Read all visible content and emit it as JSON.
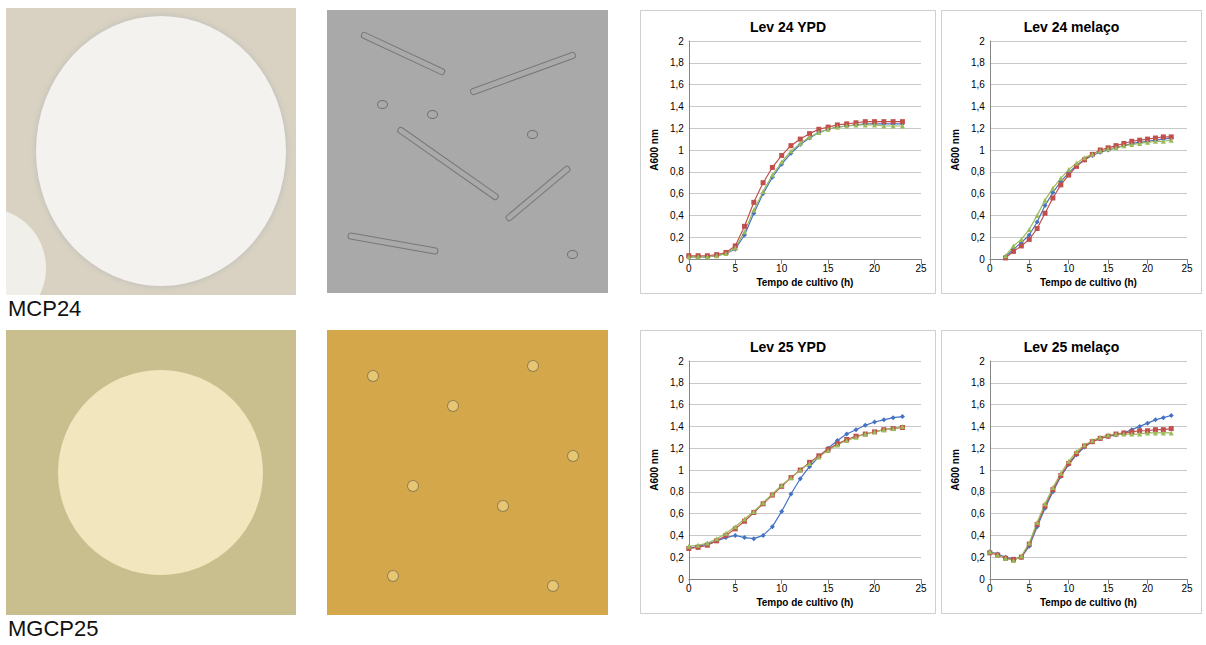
{
  "strain_labels": [
    "MCP24",
    "MGCP25"
  ],
  "chart_data": [
    {
      "type": "line",
      "title": "Lev 24 YPD",
      "x_label": "Tempo de cultivo (h)",
      "y_label": "A600 nm",
      "x": [
        0,
        1,
        2,
        3,
        4,
        5,
        6,
        7,
        8,
        9,
        10,
        11,
        12,
        13,
        14,
        15,
        16,
        17,
        18,
        19,
        20,
        21,
        22,
        23
      ],
      "series": [
        {
          "color": "#4472c4",
          "marker": "diamond",
          "values": [
            0.02,
            0.02,
            0.02,
            0.03,
            0.05,
            0.09,
            0.22,
            0.42,
            0.6,
            0.75,
            0.87,
            0.97,
            1.05,
            1.11,
            1.16,
            1.19,
            1.21,
            1.22,
            1.23,
            1.24,
            1.24,
            1.24,
            1.24,
            1.24
          ]
        },
        {
          "color": "#c0504d",
          "marker": "square",
          "values": [
            0.03,
            0.03,
            0.03,
            0.04,
            0.06,
            0.12,
            0.3,
            0.52,
            0.7,
            0.84,
            0.95,
            1.04,
            1.1,
            1.15,
            1.19,
            1.21,
            1.23,
            1.24,
            1.25,
            1.26,
            1.26,
            1.26,
            1.26,
            1.26
          ]
        },
        {
          "color": "#9bbb59",
          "marker": "triangle",
          "values": [
            0.02,
            0.02,
            0.02,
            0.03,
            0.05,
            0.1,
            0.25,
            0.45,
            0.62,
            0.77,
            0.89,
            0.99,
            1.06,
            1.12,
            1.16,
            1.19,
            1.21,
            1.22,
            1.23,
            1.23,
            1.23,
            1.22,
            1.22,
            1.22
          ]
        }
      ],
      "xlim": [
        0,
        25
      ],
      "xticks": [
        0,
        5,
        10,
        15,
        20,
        25
      ],
      "ylim": [
        0,
        2
      ],
      "yticks": [
        0,
        {
          "value": 0.2,
          "label": "0,2"
        },
        {
          "value": 0.4,
          "label": "0,4"
        },
        {
          "value": 0.6,
          "label": "0,6"
        },
        {
          "value": 0.8,
          "label": "0,8"
        },
        1,
        {
          "value": 1.2,
          "label": "1,2"
        },
        {
          "value": 1.4,
          "label": "1,4"
        },
        {
          "value": 1.6,
          "label": "1,6"
        },
        {
          "value": 1.8,
          "label": "1,8"
        },
        2
      ],
      "grid": true
    },
    {
      "type": "line",
      "title": "Lev 24 melaço",
      "x_label": "Tempo de cultivo (h)",
      "y_label": "A600 nm",
      "x": [
        2,
        3,
        4,
        5,
        6,
        7,
        8,
        9,
        10,
        11,
        12,
        13,
        14,
        15,
        16,
        17,
        18,
        19,
        20,
        21,
        22,
        23
      ],
      "series": [
        {
          "color": "#4472c4",
          "marker": "diamond",
          "values": [
            0.02,
            0.09,
            0.15,
            0.22,
            0.34,
            0.49,
            0.61,
            0.71,
            0.79,
            0.86,
            0.91,
            0.95,
            0.98,
            1.0,
            1.02,
            1.04,
            1.06,
            1.07,
            1.08,
            1.09,
            1.1,
            1.11
          ]
        },
        {
          "color": "#c0504d",
          "marker": "square",
          "values": [
            0.01,
            0.07,
            0.12,
            0.18,
            0.28,
            0.42,
            0.56,
            0.68,
            0.77,
            0.85,
            0.91,
            0.96,
            1.0,
            1.02,
            1.04,
            1.06,
            1.08,
            1.09,
            1.1,
            1.11,
            1.12,
            1.12
          ]
        },
        {
          "color": "#9bbb59",
          "marker": "triangle",
          "values": [
            0.03,
            0.12,
            0.18,
            0.27,
            0.4,
            0.54,
            0.65,
            0.74,
            0.82,
            0.88,
            0.93,
            0.96,
            0.99,
            1.01,
            1.02,
            1.04,
            1.05,
            1.06,
            1.07,
            1.08,
            1.08,
            1.09
          ]
        }
      ],
      "xlim": [
        0,
        25
      ],
      "xticks": [
        0,
        5,
        10,
        15,
        20,
        25
      ],
      "ylim": [
        0,
        2
      ],
      "yticks": [
        0,
        {
          "value": 0.2,
          "label": "0,2"
        },
        {
          "value": 0.4,
          "label": "0,4"
        },
        {
          "value": 0.6,
          "label": "0,6"
        },
        {
          "value": 0.8,
          "label": "0,8"
        },
        1,
        {
          "value": 1.2,
          "label": "1,2"
        },
        {
          "value": 1.4,
          "label": "1,4"
        },
        {
          "value": 1.6,
          "label": "1,6"
        },
        {
          "value": 1.8,
          "label": "1,8"
        },
        2
      ],
      "grid": true
    },
    {
      "type": "line",
      "title": "Lev 25 YPD",
      "x_label": "Tempo de cultivo (h)",
      "y_label": "A600 nm",
      "x": [
        0,
        1,
        2,
        3,
        4,
        5,
        6,
        7,
        8,
        9,
        10,
        11,
        12,
        13,
        14,
        15,
        16,
        17,
        18,
        19,
        20,
        21,
        22,
        23
      ],
      "series": [
        {
          "color": "#4472c4",
          "marker": "diamond",
          "values": [
            0.28,
            0.3,
            0.32,
            0.35,
            0.38,
            0.4,
            0.38,
            0.37,
            0.4,
            0.48,
            0.62,
            0.78,
            0.92,
            1.03,
            1.12,
            1.2,
            1.27,
            1.33,
            1.37,
            1.41,
            1.44,
            1.46,
            1.48,
            1.49
          ]
        },
        {
          "color": "#c0504d",
          "marker": "square",
          "values": [
            0.28,
            0.29,
            0.31,
            0.35,
            0.4,
            0.46,
            0.53,
            0.61,
            0.69,
            0.77,
            0.85,
            0.93,
            1.0,
            1.07,
            1.13,
            1.19,
            1.24,
            1.28,
            1.31,
            1.33,
            1.35,
            1.37,
            1.38,
            1.39
          ]
        },
        {
          "color": "#9bbb59",
          "marker": "triangle",
          "values": [
            0.3,
            0.31,
            0.33,
            0.37,
            0.42,
            0.48,
            0.55,
            0.62,
            0.7,
            0.78,
            0.86,
            0.93,
            1.0,
            1.06,
            1.12,
            1.18,
            1.23,
            1.27,
            1.3,
            1.33,
            1.35,
            1.37,
            1.38,
            1.4
          ]
        }
      ],
      "xlim": [
        0,
        25
      ],
      "xticks": [
        0,
        5,
        10,
        15,
        20,
        25
      ],
      "ylim": [
        0,
        2
      ],
      "yticks": [
        0,
        {
          "value": 0.2,
          "label": "0,2"
        },
        {
          "value": 0.4,
          "label": "0,4"
        },
        {
          "value": 0.6,
          "label": "0,6"
        },
        {
          "value": 0.8,
          "label": "0,8"
        },
        1,
        {
          "value": 1.2,
          "label": "1,2"
        },
        {
          "value": 1.4,
          "label": "1,4"
        },
        {
          "value": 1.6,
          "label": "1,6"
        },
        {
          "value": 1.8,
          "label": "1,8"
        },
        2
      ],
      "grid": true
    },
    {
      "type": "line",
      "title": "Lev 25 melaço",
      "x_label": "Tempo de cultivo (h)",
      "y_label": "A600 nm",
      "x": [
        0,
        1,
        2,
        3,
        4,
        5,
        6,
        7,
        8,
        9,
        10,
        11,
        12,
        13,
        14,
        15,
        16,
        17,
        18,
        19,
        20,
        21,
        22,
        23
      ],
      "series": [
        {
          "color": "#4472c4",
          "marker": "diamond",
          "values": [
            0.25,
            0.23,
            0.2,
            0.18,
            0.2,
            0.3,
            0.48,
            0.65,
            0.8,
            0.94,
            1.05,
            1.14,
            1.21,
            1.26,
            1.29,
            1.31,
            1.32,
            1.34,
            1.37,
            1.4,
            1.43,
            1.46,
            1.48,
            1.5
          ]
        },
        {
          "color": "#c0504d",
          "marker": "square",
          "values": [
            0.24,
            0.22,
            0.19,
            0.18,
            0.2,
            0.32,
            0.5,
            0.67,
            0.82,
            0.95,
            1.06,
            1.15,
            1.22,
            1.26,
            1.29,
            1.31,
            1.33,
            1.34,
            1.35,
            1.36,
            1.36,
            1.37,
            1.37,
            1.38
          ]
        },
        {
          "color": "#9bbb59",
          "marker": "triangle",
          "values": [
            0.25,
            0.22,
            0.19,
            0.17,
            0.21,
            0.33,
            0.52,
            0.69,
            0.84,
            0.97,
            1.08,
            1.17,
            1.23,
            1.27,
            1.3,
            1.32,
            1.33,
            1.33,
            1.33,
            1.33,
            1.34,
            1.34,
            1.34,
            1.34
          ]
        }
      ],
      "xlim": [
        0,
        25
      ],
      "xticks": [
        0,
        5,
        10,
        15,
        20,
        25
      ],
      "ylim": [
        0,
        2
      ],
      "yticks": [
        0,
        {
          "value": 0.2,
          "label": "0,2"
        },
        {
          "value": 0.4,
          "label": "0,4"
        },
        {
          "value": 0.6,
          "label": "0,6"
        },
        {
          "value": 0.8,
          "label": "0,8"
        },
        1,
        {
          "value": 1.2,
          "label": "1,2"
        },
        {
          "value": 1.4,
          "label": "1,4"
        },
        {
          "value": 1.6,
          "label": "1,6"
        },
        {
          "value": 1.8,
          "label": "1,8"
        },
        2
      ],
      "grid": true
    }
  ]
}
